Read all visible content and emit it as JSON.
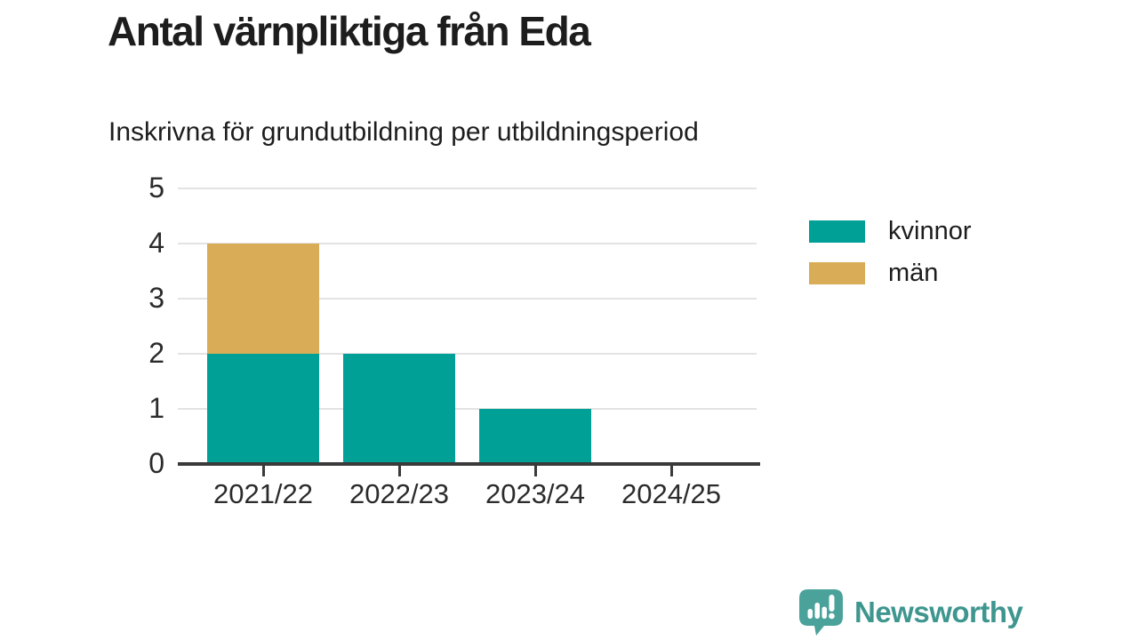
{
  "title": "Antal värnpliktiga från Eda",
  "subtitle": "Inskrivna för grundutbildning per utbildningsperiod",
  "footer": {
    "brand": "Newsworthy"
  },
  "colors": {
    "kvinnor": "#00a096",
    "man": "#d9ac57",
    "axis": "#3a3a3a",
    "grid": "#e3e3e3",
    "text": "#1d1d1d",
    "brand": "#3e968f",
    "logo_bubble": "#4aa29b"
  },
  "legend": {
    "items": [
      {
        "label": "kvinnor",
        "color": "#00a096"
      },
      {
        "label": "män",
        "color": "#d9ac57"
      }
    ]
  },
  "chart_data": {
    "type": "bar",
    "stacked": true,
    "title": "Antal värnpliktiga från Eda",
    "subtitle": "Inskrivna för grundutbildning per utbildningsperiod",
    "categories": [
      "2021/22",
      "2022/23",
      "2023/24",
      "2024/25"
    ],
    "series": [
      {
        "name": "kvinnor",
        "color": "#00a096",
        "values": [
          2,
          2,
          1,
          0
        ]
      },
      {
        "name": "män",
        "color": "#d9ac57",
        "values": [
          2,
          0,
          0,
          0
        ]
      }
    ],
    "xlabel": "",
    "ylabel": "",
    "ylim": [
      0,
      5
    ],
    "yticks": [
      0,
      1,
      2,
      3,
      4,
      5
    ],
    "grid": true,
    "legend_position": "right"
  }
}
